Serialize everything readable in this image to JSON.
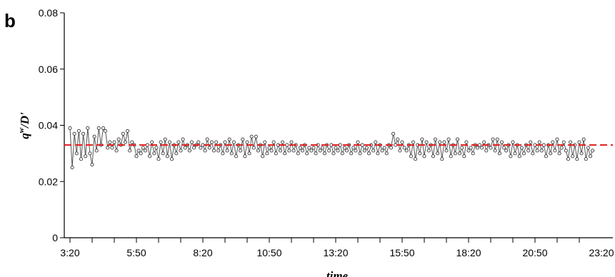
{
  "panel_label": "b",
  "chart_data": {
    "type": "line",
    "xlabel": "time",
    "ylabel": "q^w/D'",
    "ylabel_base": "q",
    "ylabel_sup": "w",
    "ylabel_rest": "/D'",
    "ylim": [
      0,
      0.08
    ],
    "y_ticks": [
      0,
      0.02,
      0.04,
      0.06,
      0.08
    ],
    "y_tick_labels": [
      "0",
      "0.02",
      "0.04",
      "0.06",
      "0.08"
    ],
    "x_tick_labels": [
      "3:20",
      "5:50",
      "8:20",
      "10:50",
      "13:20",
      "15:50",
      "18:20",
      "20:50",
      "23:20"
    ],
    "x_tick_index": [
      0,
      30,
      60,
      90,
      120,
      150,
      180,
      210,
      240
    ],
    "minor_tick_step": 10,
    "series": [
      {
        "color": "#333333",
        "marker": "open-circle",
        "values": [
          0.039,
          0.025,
          0.037,
          0.03,
          0.038,
          0.028,
          0.037,
          0.029,
          0.039,
          0.03,
          0.026,
          0.036,
          0.031,
          0.039,
          0.033,
          0.039,
          0.038,
          0.032,
          0.034,
          0.032,
          0.034,
          0.031,
          0.035,
          0.033,
          0.037,
          0.034,
          0.038,
          0.031,
          0.034,
          0.033,
          0.029,
          0.031,
          0.03,
          0.032,
          0.031,
          0.033,
          0.029,
          0.034,
          0.03,
          0.032,
          0.028,
          0.034,
          0.03,
          0.035,
          0.029,
          0.034,
          0.028,
          0.033,
          0.03,
          0.034,
          0.031,
          0.035,
          0.032,
          0.033,
          0.031,
          0.034,
          0.032,
          0.033,
          0.034,
          0.032,
          0.033,
          0.031,
          0.035,
          0.032,
          0.034,
          0.031,
          0.034,
          0.031,
          0.033,
          0.03,
          0.034,
          0.031,
          0.035,
          0.03,
          0.034,
          0.029,
          0.033,
          0.031,
          0.035,
          0.029,
          0.034,
          0.03,
          0.036,
          0.032,
          0.036,
          0.031,
          0.033,
          0.029,
          0.034,
          0.03,
          0.032,
          0.031,
          0.034,
          0.03,
          0.033,
          0.031,
          0.034,
          0.03,
          0.033,
          0.031,
          0.034,
          0.031,
          0.033,
          0.03,
          0.032,
          0.031,
          0.033,
          0.03,
          0.032,
          0.031,
          0.032,
          0.03,
          0.033,
          0.031,
          0.032,
          0.03,
          0.033,
          0.031,
          0.033,
          0.03,
          0.032,
          0.031,
          0.033,
          0.03,
          0.032,
          0.031,
          0.033,
          0.03,
          0.032,
          0.031,
          0.034,
          0.03,
          0.033,
          0.031,
          0.032,
          0.03,
          0.033,
          0.031,
          0.034,
          0.03,
          0.033,
          0.031,
          0.032,
          0.03,
          0.033,
          0.032,
          0.037,
          0.033,
          0.035,
          0.031,
          0.034,
          0.032,
          0.031,
          0.033,
          0.029,
          0.034,
          0.028,
          0.033,
          0.03,
          0.035,
          0.029,
          0.034,
          0.031,
          0.033,
          0.029,
          0.035,
          0.03,
          0.034,
          0.028,
          0.034,
          0.031,
          0.035,
          0.029,
          0.033,
          0.03,
          0.035,
          0.03,
          0.032,
          0.029,
          0.034,
          0.031,
          0.032,
          0.03,
          0.033,
          0.032,
          0.033,
          0.032,
          0.034,
          0.031,
          0.033,
          0.032,
          0.035,
          0.031,
          0.035,
          0.03,
          0.034,
          0.032,
          0.031,
          0.033,
          0.029,
          0.034,
          0.03,
          0.033,
          0.029,
          0.032,
          0.03,
          0.033,
          0.031,
          0.034,
          0.03,
          0.033,
          0.031,
          0.034,
          0.031,
          0.033,
          0.029,
          0.033,
          0.03,
          0.034,
          0.031,
          0.035,
          0.03,
          0.032,
          0.034,
          0.031,
          0.028,
          0.034,
          0.029,
          0.033,
          0.028,
          0.034,
          0.03,
          0.035,
          0.028,
          0.032,
          0.029,
          0.031
        ]
      },
      {
        "color": "#e41a1c",
        "style": "dashed",
        "values": [
          0.033,
          0.033
        ]
      }
    ],
    "grid": false,
    "legend": "none"
  }
}
